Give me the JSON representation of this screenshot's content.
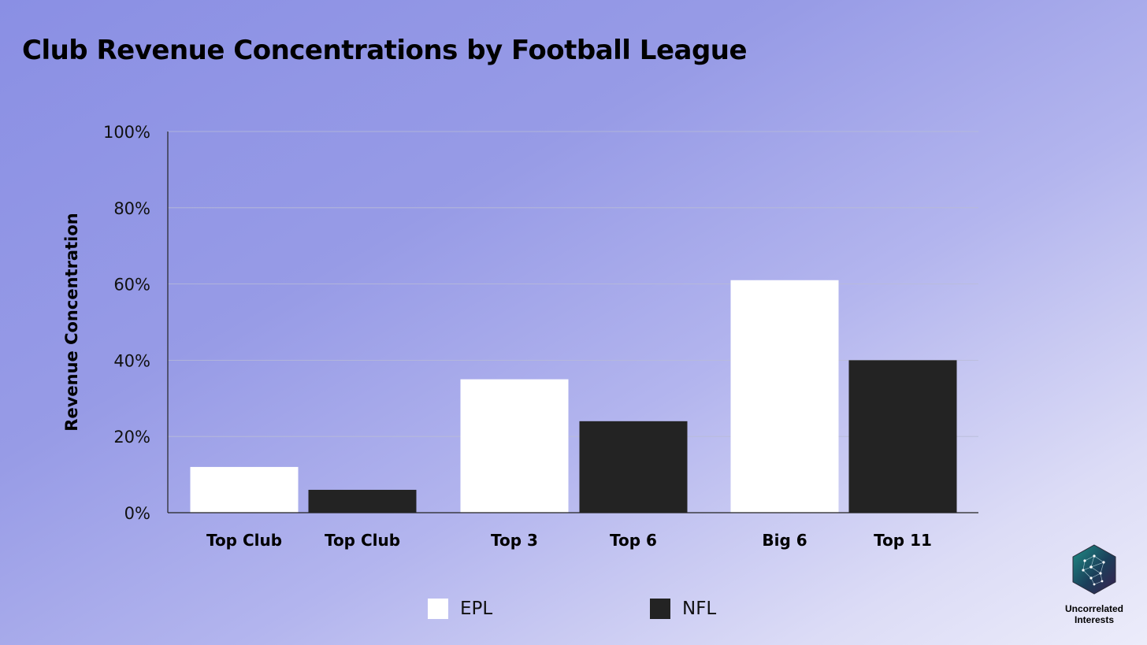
{
  "title": "Club Revenue Concentrations by Football League",
  "chart_data": {
    "type": "bar",
    "title": "Club Revenue Concentrations by Football League",
    "ylabel": "Revenue Concentration",
    "xlabel": "",
    "ylim": [
      0,
      100
    ],
    "yticks": [
      "0%",
      "20%",
      "40%",
      "60%",
      "80%",
      "100%"
    ],
    "grid": true,
    "legend_position": "bottom",
    "series": [
      {
        "name": "EPL",
        "color": "#ffffff"
      },
      {
        "name": "NFL",
        "color": "#232323"
      }
    ],
    "bars": [
      {
        "label": "Top Club",
        "series": "EPL",
        "value": 12
      },
      {
        "label": "Top Club",
        "series": "NFL",
        "value": 6
      },
      {
        "label": "Top 3",
        "series": "EPL",
        "value": 35
      },
      {
        "label": "Top 6",
        "series": "NFL",
        "value": 24
      },
      {
        "label": "Big 6",
        "series": "EPL",
        "value": 61
      },
      {
        "label": "Top 11",
        "series": "NFL",
        "value": 40
      }
    ]
  },
  "legend": {
    "epl": "EPL",
    "nfl": "NFL"
  },
  "logo": {
    "line1": "Uncorrelated",
    "line2": "Interests",
    "icon": "network-hexagon-icon"
  }
}
